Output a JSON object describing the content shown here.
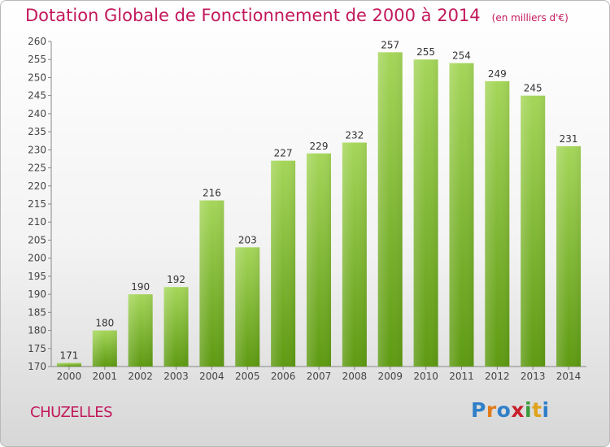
{
  "header": {
    "title": "Dotation Globale de Fonctionnement de 2000 à 2014",
    "unit": "(en milliers d'€)"
  },
  "footer": {
    "commune": "CHUZELLES",
    "logo_text": "Proxiti"
  },
  "colors": {
    "title": "#c2185b",
    "bar_top": "#a5d65a",
    "bar_bottom": "#5e9a12",
    "logo": [
      "#2f7fc8",
      "#e07b1a",
      "#2f7fc8",
      "#c7202b",
      "#3a9a3a",
      "#e0a21a",
      "#2f7fc8"
    ]
  },
  "chart_data": {
    "type": "bar",
    "categories": [
      "2000",
      "2001",
      "2002",
      "2003",
      "2004",
      "2005",
      "2006",
      "2007",
      "2008",
      "2009",
      "2010",
      "2011",
      "2012",
      "2013",
      "2014"
    ],
    "values": [
      171,
      180,
      190,
      192,
      216,
      203,
      227,
      229,
      232,
      257,
      255,
      254,
      249,
      245,
      231
    ],
    "ylim": [
      170,
      260
    ],
    "yticks": [
      170,
      175,
      180,
      185,
      190,
      195,
      200,
      205,
      210,
      215,
      220,
      225,
      230,
      235,
      240,
      245,
      250,
      255,
      260
    ],
    "grid": false,
    "legend": "none"
  }
}
